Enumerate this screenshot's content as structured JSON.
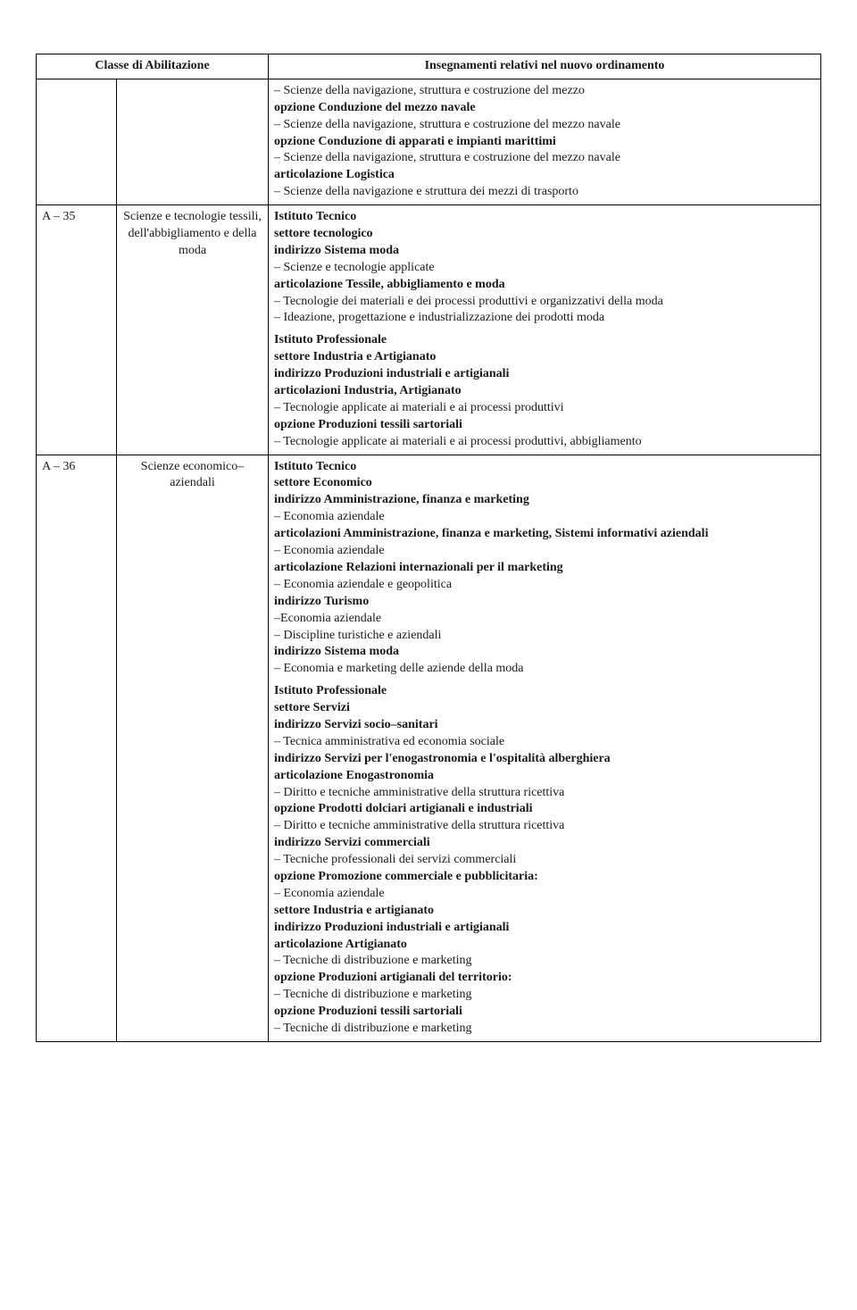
{
  "header": {
    "col1": "Classe di Abilitazione",
    "col3": "Insegnamenti relativi nel nuovo ordinamento"
  },
  "rows": {
    "r0": {
      "code": "",
      "denom": "",
      "lines": [
        {
          "t": "– Scienze della navigazione, struttura e costruzione del mezzo",
          "b": false
        },
        {
          "t": "opzione Conduzione del mezzo navale",
          "b": true
        },
        {
          "t": "– Scienze della navigazione, struttura e costruzione del mezzo navale",
          "b": false
        },
        {
          "t": "opzione Conduzione di apparati e impianti marittimi",
          "b": true
        },
        {
          "t": "– Scienze della navigazione, struttura e costruzione del mezzo navale",
          "b": false
        },
        {
          "t": "articolazione Logistica",
          "b": true
        },
        {
          "t": "– Scienze della navigazione e struttura dei mezzi di trasporto",
          "b": false
        }
      ]
    },
    "r1": {
      "code": "A – 35",
      "denom": "Scienze e tecnologie tessili, dell'abbigliamento e della moda",
      "group1": [
        {
          "t": "Istituto Tecnico",
          "b": true
        },
        {
          "t": "settore tecnologico",
          "b": true
        },
        {
          "t": "indirizzo Sistema moda",
          "b": true
        },
        {
          "t": "– Scienze e tecnologie applicate",
          "b": false
        },
        {
          "t": "articolazione Tessile, abbigliamento e moda",
          "b": true
        },
        {
          "t": "– Tecnologie dei materiali e dei processi produttivi e organizzativi della moda",
          "b": false
        },
        {
          "t": "– Ideazione, progettazione e industrializzazione dei prodotti moda",
          "b": false
        }
      ],
      "group2": [
        {
          "t": "Istituto Professionale",
          "b": true
        },
        {
          "t": "settore Industria e Artigianato",
          "b": true
        },
        {
          "t": "indirizzo Produzioni industriali e artigianali",
          "b": true
        },
        {
          "t": "articolazioni Industria, Artigianato",
          "b": true
        },
        {
          "t": "– Tecnologie applicate ai materiali e ai processi produttivi",
          "b": false
        },
        {
          "t": "opzione Produzioni tessili sartoriali",
          "b": true
        },
        {
          "t": "– Tecnologie applicate ai materiali e ai processi produttivi, abbigliamento",
          "b": false
        }
      ]
    },
    "r2": {
      "code": "A – 36",
      "denom": "Scienze economico–aziendali",
      "group1": [
        {
          "t": "Istituto Tecnico",
          "b": true
        },
        {
          "t": "settore Economico",
          "b": true
        },
        {
          "t": "indirizzo Amministrazione, finanza e marketing",
          "b": true
        },
        {
          "t": "– Economia aziendale",
          "b": false
        },
        {
          "t": "articolazioni Amministrazione, finanza e marketing, Sistemi informativi aziendali",
          "b": true
        },
        {
          "t": "– Economia aziendale",
          "b": false
        },
        {
          "t": "articolazione Relazioni internazionali per il marketing",
          "b": true
        },
        {
          "t": "– Economia aziendale e geopolitica",
          "b": false
        },
        {
          "t": "indirizzo Turismo",
          "b": true
        },
        {
          "t": "–Economia aziendale",
          "b": false
        },
        {
          "t": "– Discipline turistiche e aziendali",
          "b": false
        },
        {
          "t": "indirizzo Sistema moda",
          "b": true
        },
        {
          "t": "– Economia e marketing delle aziende della moda",
          "b": false
        }
      ],
      "group2": [
        {
          "t": "Istituto Professionale",
          "b": true
        },
        {
          "t": "settore Servizi",
          "b": true
        },
        {
          "t": "indirizzo Servizi socio–sanitari",
          "b": true
        },
        {
          "t": "– Tecnica amministrativa ed economia sociale",
          "b": false
        },
        {
          "t": "indirizzo Servizi per l'enogastronomia e l'ospitalità alberghiera",
          "b": true
        },
        {
          "t": "articolazione Enogastronomia",
          "b": true
        },
        {
          "t": "– Diritto e tecniche amministrative della struttura ricettiva",
          "b": false
        },
        {
          "t": "opzione Prodotti dolciari artigianali e industriali",
          "b": true
        },
        {
          "t": "– Diritto e tecniche amministrative della struttura ricettiva",
          "b": false
        },
        {
          "t": "indirizzo Servizi commerciali",
          "b": true
        },
        {
          "t": "– Tecniche professionali dei servizi commerciali",
          "b": false
        },
        {
          "t": "opzione Promozione commerciale e pubblicitaria:",
          "b": true
        },
        {
          "t": "– Economia aziendale",
          "b": false
        },
        {
          "t": "settore Industria e artigianato",
          "b": true
        },
        {
          "t": "indirizzo Produzioni industriali e artigianali",
          "b": true
        },
        {
          "t": "articolazione Artigianato",
          "b": true
        },
        {
          "t": "– Tecniche di distribuzione e marketing",
          "b": false
        },
        {
          "t": "opzione Produzioni artigianali del territorio:",
          "b": true
        },
        {
          "t": "– Tecniche di distribuzione e marketing",
          "b": false
        },
        {
          "t": "opzione Produzioni tessili sartoriali",
          "b": true
        },
        {
          "t": "– Tecniche di distribuzione e marketing",
          "b": false
        }
      ]
    }
  }
}
